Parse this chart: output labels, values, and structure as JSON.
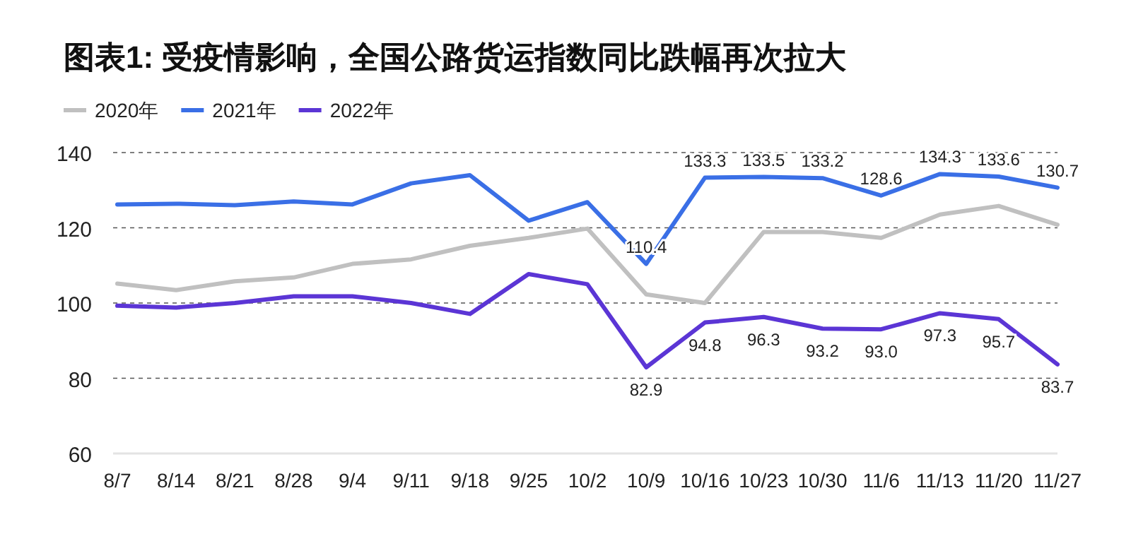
{
  "chart_data": {
    "type": "line",
    "title": "图表1: 受疫情影响，全国公路货运指数同比跌幅再次拉大",
    "categories": [
      "8/7",
      "8/14",
      "8/21",
      "8/28",
      "9/4",
      "9/11",
      "9/18",
      "9/25",
      "10/2",
      "10/9",
      "10/16",
      "10/23",
      "10/30",
      "11/6",
      "11/13",
      "11/20",
      "11/27"
    ],
    "series": [
      {
        "name": "2020年",
        "color": "#c0c0c0",
        "values": [
          105.2,
          103.4,
          105.8,
          106.8,
          110.4,
          111.6,
          115.2,
          117.3,
          119.8,
          102.3,
          100,
          118.9,
          118.9,
          117.3,
          123.5,
          125.8,
          120.8
        ]
      },
      {
        "name": "2021年",
        "color": "#3a6fe6",
        "values": [
          126.2,
          126.4,
          126,
          127,
          126.2,
          131.8,
          134,
          121.9,
          126.8,
          110.4,
          133.3,
          133.5,
          133.2,
          128.6,
          134.3,
          133.6,
          130.7
        ],
        "value_labels": [
          null,
          null,
          null,
          null,
          null,
          null,
          null,
          null,
          null,
          "110.4",
          "133.3",
          "133.5",
          "133.2",
          "128.6",
          "134.3",
          "133.6",
          "130.7"
        ]
      },
      {
        "name": "2022年",
        "color": "#5b35d5",
        "values": [
          99.3,
          98.8,
          100,
          101.8,
          101.8,
          100,
          97.1,
          107.7,
          105,
          82.9,
          94.8,
          96.3,
          93.2,
          93.0,
          97.3,
          95.7,
          83.7
        ],
        "value_labels": [
          null,
          null,
          null,
          null,
          null,
          null,
          null,
          null,
          null,
          "82.9",
          "94.8",
          "96.3",
          "93.2",
          "93.0",
          "97.3",
          "95.7",
          "83.7"
        ]
      }
    ],
    "ylim": [
      60,
      140
    ],
    "yticks": [
      60,
      80,
      100,
      120,
      140
    ],
    "grid": "y",
    "legend": "top left"
  }
}
